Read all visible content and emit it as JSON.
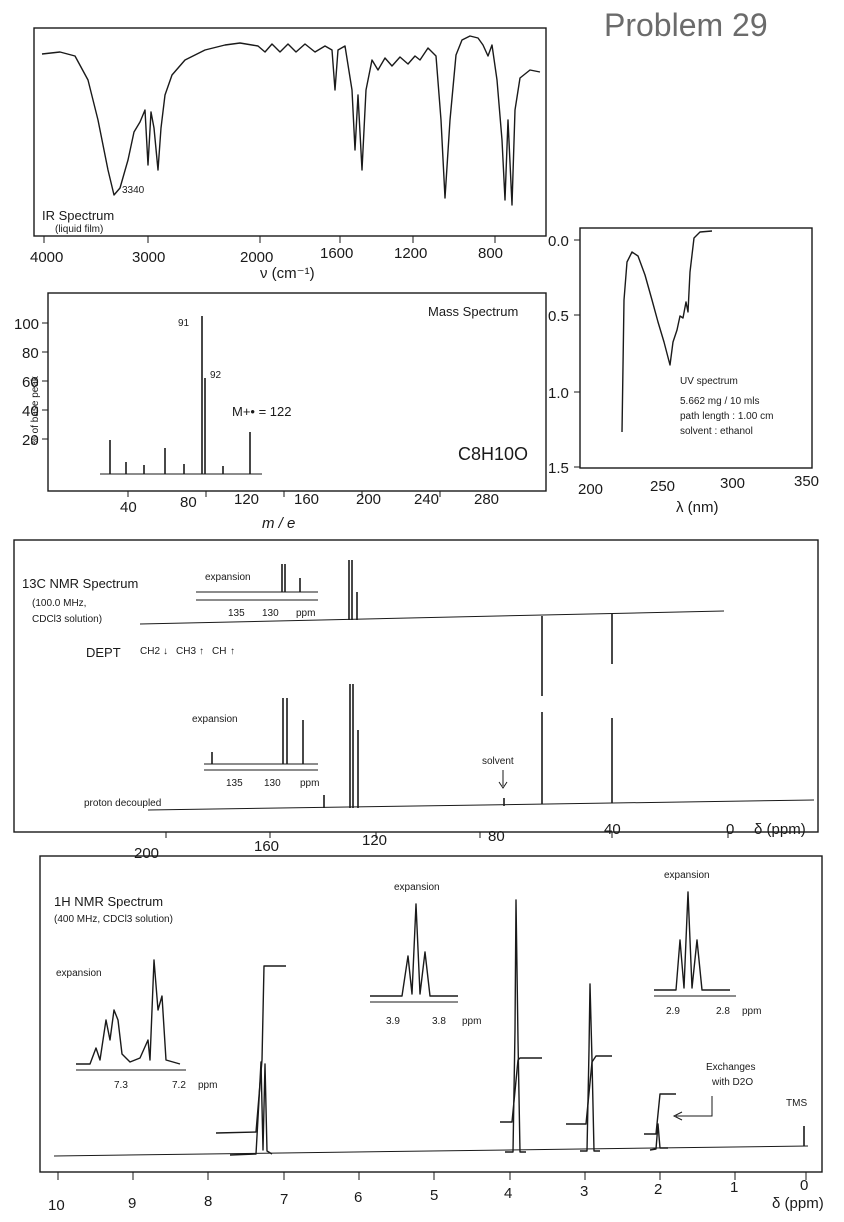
{
  "page": {
    "title": "Problem 29"
  },
  "ir": {
    "label": "IR Spectrum",
    "sublabel": "(liquid film)",
    "annotation": "3340",
    "axis_label": "ν (cm⁻¹)",
    "ticks": [
      "4000",
      "3000",
      "2000",
      "1600",
      "1200",
      "800"
    ]
  },
  "ms": {
    "label": "Mass Spectrum",
    "formula": "C8H10O",
    "molecular_ion": "M+• = 122",
    "ylabel": "% of base peak",
    "xlabel": "m / e",
    "yticks": [
      "100",
      "80",
      "60",
      "40",
      "20"
    ],
    "xticks": [
      "40",
      "80",
      "120",
      "160",
      "200",
      "240",
      "280"
    ],
    "peak_labels": [
      "91",
      "92"
    ]
  },
  "uv": {
    "label": "UV spectrum",
    "line1": "5.662 mg / 10 mls",
    "line2": "path length : 1.00 cm",
    "line3": "solvent : ethanol",
    "yticks": [
      "0.0",
      "0.5",
      "1.0",
      "1.5"
    ],
    "xticks": [
      "200",
      "250",
      "300",
      "350"
    ],
    "xlabel": "λ (nm)"
  },
  "c13": {
    "label": "13C NMR Spectrum",
    "freq": "(100.0 MHz,",
    "solvent_text": "CDCl3 solution)",
    "dept_label": "DEPT",
    "dept_key": [
      "CH2",
      "CH3",
      "CH"
    ],
    "expansion_label": "expansion",
    "expansion_ticks": [
      "135",
      "130",
      "ppm"
    ],
    "solvent_label": "solvent",
    "decoupled_label": "proton decoupled",
    "xticks": [
      "200",
      "160",
      "120",
      "80",
      "40",
      "0"
    ],
    "xlabel": "δ (ppm)"
  },
  "h1": {
    "label": "1H NMR Spectrum",
    "sublabel": "(400 MHz, CDCl3 solution)",
    "expansion_label": "expansion",
    "exp1_ticks": [
      "7.3",
      "7.2",
      "ppm"
    ],
    "exp2_ticks": [
      "3.9",
      "3.8",
      "ppm"
    ],
    "exp3_ticks": [
      "2.9",
      "2.8",
      "ppm"
    ],
    "exchange_line1": "Exchanges",
    "exchange_line2": "with D2O",
    "tms_label": "TMS",
    "xticks": [
      "10",
      "9",
      "8",
      "7",
      "6",
      "5",
      "4",
      "3",
      "2",
      "1",
      "0"
    ],
    "xlabel": "δ (ppm)"
  },
  "chart_data": [
    {
      "type": "line",
      "name": "IR",
      "xlabel": "ν (cm-1)",
      "x_reversed": true,
      "x": [
        4000,
        3800,
        3600,
        3500,
        3400,
        3340,
        3280,
        3200,
        3100,
        3060,
        3030,
        2990,
        2950,
        2900,
        2850,
        2700,
        2400,
        2000,
        1950,
        1800,
        1700,
        1610,
        1600,
        1500,
        1490,
        1455,
        1440,
        1400,
        1300,
        1200,
        1100,
        1045,
        1000,
        900,
        820,
        750,
        730,
        700,
        690,
        650,
        600
      ],
      "transmittance_pct": [
        90,
        89,
        80,
        55,
        20,
        5,
        12,
        35,
        58,
        25,
        45,
        28,
        60,
        40,
        60,
        76,
        82,
        86,
        84,
        86,
        84,
        80,
        86,
        15,
        30,
        28,
        70,
        76,
        72,
        84,
        82,
        8,
        75,
        86,
        80,
        25,
        40,
        15,
        60,
        75,
        82
      ]
    },
    {
      "type": "bar",
      "name": "Mass Spectrum",
      "xlabel": "m / e",
      "ylabel": "% of base peak",
      "x": [
        27,
        39,
        51,
        65,
        77,
        91,
        92,
        103,
        122
      ],
      "values": [
        25,
        10,
        8,
        20,
        8,
        100,
        64,
        5,
        30
      ],
      "ylim": [
        0,
        100
      ]
    },
    {
      "type": "line",
      "name": "UV",
      "xlabel": "λ (nm)",
      "ylabel": "absorbance",
      "x": [
        220,
        225,
        230,
        235,
        240,
        245,
        250,
        255,
        258,
        260,
        262,
        264,
        266,
        268,
        270,
        275,
        280
      ],
      "absorbance": [
        1.2,
        0.05,
        0.1,
        0.3,
        0.45,
        0.55,
        0.7,
        0.82,
        0.72,
        0.6,
        0.68,
        0.48,
        0.35,
        0.15,
        0.05,
        0.02,
        0.02
      ],
      "ylim": [
        0,
        1.5
      ]
    },
    {
      "type": "bar",
      "name": "13C NMR",
      "xlabel": "δ (ppm)",
      "x": [
        138.9,
        129.0,
        128.5,
        126.5,
        77.0,
        63.6,
        39.1
      ],
      "dept": [
        "",
        "CH",
        "CH",
        "CH",
        "",
        "CH2",
        "CH2"
      ]
    },
    {
      "type": "line",
      "name": "1H NMR",
      "xlabel": "δ (ppm)",
      "x": [
        7.25,
        3.85,
        2.86,
        1.9,
        0.0
      ],
      "integration": [
        5,
        2,
        2,
        1,
        0
      ],
      "multiplicity": [
        "m",
        "t",
        "t",
        "s",
        "s"
      ]
    }
  ]
}
